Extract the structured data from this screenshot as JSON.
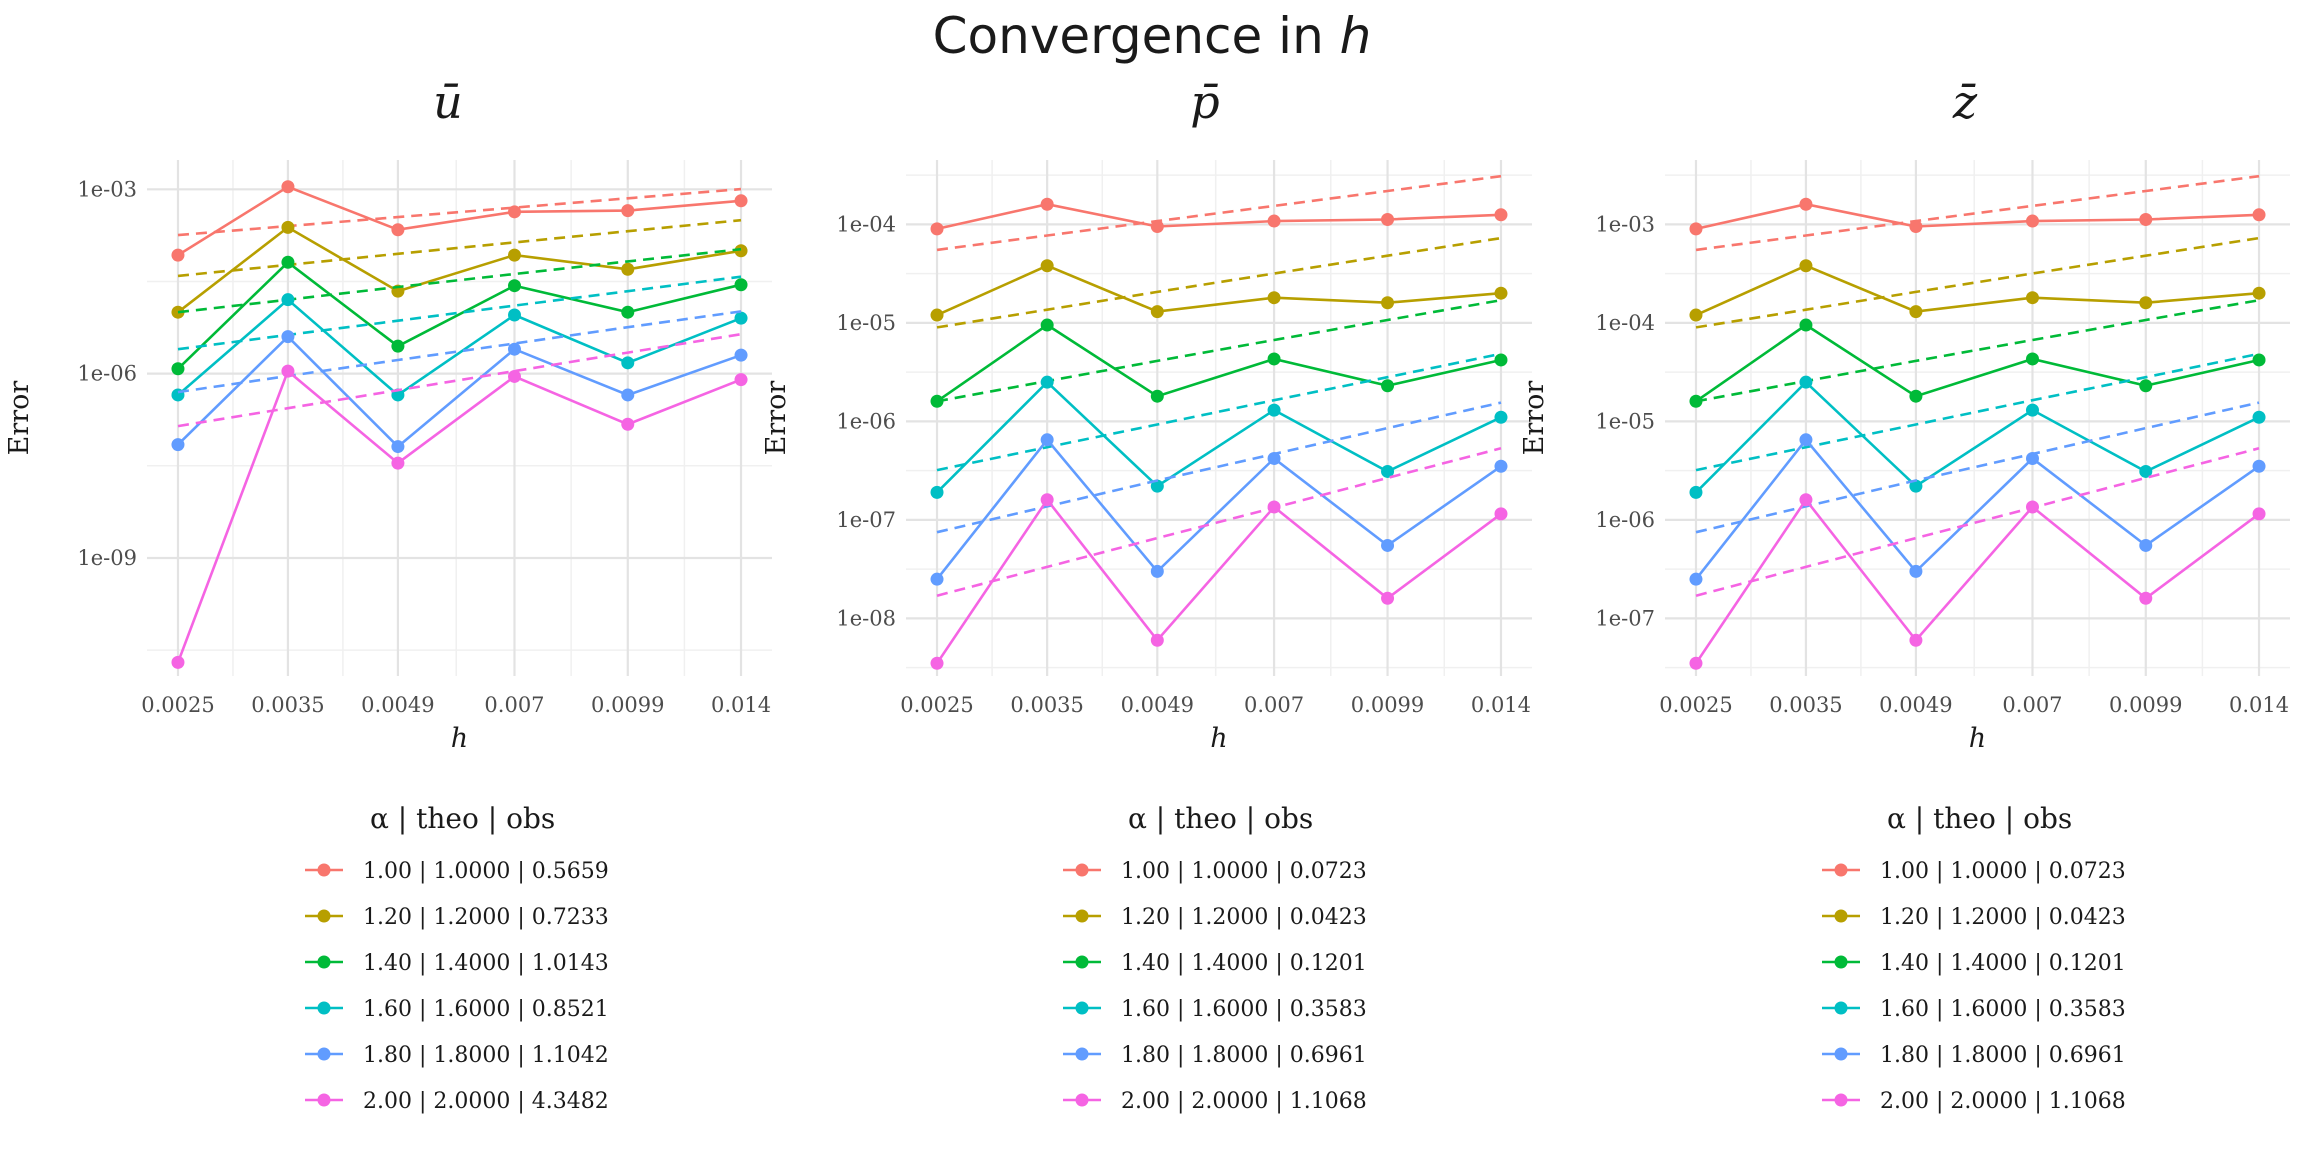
{
  "title_prefix": "Convergence in",
  "title_var": "h",
  "series_colors": [
    "#F8766D",
    "#B79F00",
    "#00BA38",
    "#00BFC4",
    "#619CFF",
    "#F564E3"
  ],
  "chart_data": [
    {
      "type": "line",
      "title": "ū",
      "xlabel": "h",
      "ylabel": "Error",
      "x_scale": "log",
      "y_scale": "log",
      "x": [
        0.0025,
        0.0035,
        0.0049,
        0.007,
        0.0099,
        0.014
      ],
      "x_tick_labels": [
        "0.0025",
        "0.0035",
        "0.0049",
        "0.007",
        "0.0099",
        "0.014"
      ],
      "y_ticks": [
        1e-09,
        1e-06,
        0.001
      ],
      "y_tick_labels": [
        "1e-09",
        "1e-06",
        "1e-03"
      ],
      "ylim": [
        1.2e-11,
        0.003
      ],
      "grid": true,
      "legend_header": "α  | theo  | obs",
      "legend_position": "bottom",
      "series": [
        {
          "name": "1.00 | 1.0000 | 0.5659",
          "values": [
            8.5e-05,
            0.0011,
            0.00022,
            0.00043,
            0.00045,
            0.00065
          ],
          "theoretical": [
            0.00018,
            0.000252,
            0.000353,
            0.000504,
            0.000713,
            0.00101
          ]
        },
        {
          "name": "1.20 | 1.2000 | 0.7233",
          "values": [
            1e-05,
            0.00024,
            2.2e-05,
            8.5e-05,
            5e-05,
            0.0001
          ],
          "theoretical": [
            3.9e-05,
            5.89e-05,
            8.93e-05,
            0.000137,
            0.000208,
            0.000314
          ]
        },
        {
          "name": "1.40 | 1.4000 | 1.0143",
          "values": [
            1.2e-06,
            6.5e-05,
            2.8e-06,
            2.7e-05,
            1e-05,
            2.8e-05
          ],
          "theoretical": [
            1e-05,
            1.6e-05,
            2.57e-05,
            4.19e-05,
            6.71e-05,
            0.000106
          ]
        },
        {
          "name": "1.60 | 1.6000 | 0.8521",
          "values": [
            4.5e-07,
            1.6e-05,
            4.5e-07,
            9e-06,
            1.5e-06,
            8e-06
          ],
          "theoretical": [
            2.5e-06,
            4.27e-06,
            7.26e-06,
            1.28e-05,
            2.2e-05,
            3.78e-05
          ]
        },
        {
          "name": "1.80 | 1.8000 | 1.1042",
          "values": [
            7e-08,
            4e-06,
            6.5e-08,
            2.5e-06,
            4.5e-07,
            2e-06
          ],
          "theoretical": [
            5e-07,
            9.15e-07,
            1.67e-06,
            3.1e-06,
            5.7e-06,
            1.03e-05
          ]
        },
        {
          "name": "2.00 | 2.0000 | 4.3482",
          "values": [
            2e-11,
            1.1e-06,
            3.5e-08,
            9e-07,
            1.5e-07,
            8e-07
          ],
          "theoretical": [
            1.4e-07,
            2.74e-07,
            5.38e-07,
            1.1e-06,
            2.2e-06,
            4.39e-06
          ]
        }
      ]
    },
    {
      "type": "line",
      "title": "p̄",
      "xlabel": "h",
      "ylabel": "Error",
      "x_scale": "log",
      "y_scale": "log",
      "x": [
        0.0025,
        0.0035,
        0.0049,
        0.007,
        0.0099,
        0.014
      ],
      "x_tick_labels": [
        "0.0025",
        "0.0035",
        "0.0049",
        "0.007",
        "0.0099",
        "0.014"
      ],
      "y_ticks": [
        1e-08,
        1e-07,
        1e-06,
        1e-05,
        0.0001
      ],
      "y_tick_labels": [
        "1e-08",
        "1e-07",
        "1e-06",
        "1e-05",
        "1e-04"
      ],
      "ylim": [
        2.6e-09,
        0.00045
      ],
      "grid": true,
      "legend_header": "α  | theo  | obs",
      "legend_position": "bottom",
      "series": [
        {
          "name": "1.00 | 1.0000 | 0.0723",
          "values": [
            9e-05,
            0.00016,
            9.5e-05,
            0.000108,
            0.000112,
            0.000125
          ],
          "theoretical": [
            5.5e-05,
            7.7e-05,
            0.000108,
            0.000154,
            0.000218,
            0.000308
          ]
        },
        {
          "name": "1.20 | 1.2000 | 0.0423",
          "values": [
            1.2e-05,
            3.8e-05,
            1.3e-05,
            1.8e-05,
            1.6e-05,
            2e-05
          ],
          "theoretical": [
            9e-06,
            1.36e-05,
            2.06e-05,
            3.17e-05,
            4.8e-05,
            7.25e-05
          ]
        },
        {
          "name": "1.40 | 1.4000 | 0.1201",
          "values": [
            1.6e-06,
            9.5e-06,
            1.8e-06,
            4.3e-06,
            2.3e-06,
            4.2e-06
          ],
          "theoretical": [
            1.6e-06,
            2.56e-06,
            4.11e-06,
            6.7e-06,
            1.07e-05,
            1.7e-05
          ]
        },
        {
          "name": "1.60 | 1.6000 | 0.3583",
          "values": [
            1.9e-07,
            2.5e-06,
            2.2e-07,
            1.3e-06,
            3.1e-07,
            1.1e-06
          ],
          "theoretical": [
            3.2e-07,
            5.47e-07,
            9.3e-07,
            1.64e-06,
            2.81e-06,
            4.85e-06
          ]
        },
        {
          "name": "1.80 | 1.8000 | 0.6961",
          "values": [
            2.5e-08,
            6.5e-07,
            3e-08,
            4.2e-07,
            5.5e-08,
            3.5e-07
          ],
          "theoretical": [
            7.5e-08,
            1.37e-07,
            2.51e-07,
            4.66e-07,
            8.54e-07,
            1.55e-06
          ]
        },
        {
          "name": "2.00 | 2.0000 | 1.1068",
          "values": [
            3.5e-09,
            1.6e-07,
            6e-09,
            1.35e-07,
            1.6e-08,
            1.15e-07
          ],
          "theoretical": [
            1.7e-08,
            3.33e-08,
            6.53e-08,
            1.33e-07,
            2.67e-07,
            5.33e-07
          ]
        }
      ]
    },
    {
      "type": "line",
      "title": "z̄",
      "xlabel": "h",
      "ylabel": "Error",
      "x_scale": "log",
      "y_scale": "log",
      "x": [
        0.0025,
        0.0035,
        0.0049,
        0.007,
        0.0099,
        0.014
      ],
      "x_tick_labels": [
        "0.0025",
        "0.0035",
        "0.0049",
        "0.007",
        "0.0099",
        "0.014"
      ],
      "y_ticks": [
        1e-07,
        1e-06,
        1e-05,
        0.0001,
        0.001
      ],
      "y_tick_labels": [
        "1e-07",
        "1e-06",
        "1e-05",
        "1e-04",
        "1e-03"
      ],
      "ylim": [
        2.6e-08,
        0.0045
      ],
      "grid": true,
      "legend_header": "α  | theo  | obs",
      "legend_position": "bottom",
      "series": [
        {
          "name": "1.00 | 1.0000 | 0.0723",
          "values": [
            0.0009,
            0.0016,
            0.00095,
            0.00108,
            0.00112,
            0.00125
          ],
          "theoretical": [
            0.00055,
            0.00077,
            0.00108,
            0.00154,
            0.00218,
            0.00308
          ]
        },
        {
          "name": "1.20 | 1.2000 | 0.0423",
          "values": [
            0.00012,
            0.00038,
            0.00013,
            0.00018,
            0.00016,
            0.0002
          ],
          "theoretical": [
            9e-05,
            0.000136,
            0.000206,
            0.000317,
            0.00048,
            0.000725
          ]
        },
        {
          "name": "1.40 | 1.4000 | 0.1201",
          "values": [
            1.6e-05,
            9.5e-05,
            1.8e-05,
            4.3e-05,
            2.3e-05,
            4.2e-05
          ],
          "theoretical": [
            1.6e-05,
            2.56e-05,
            4.11e-05,
            6.7e-05,
            0.000107,
            0.00017
          ]
        },
        {
          "name": "1.60 | 1.6000 | 0.3583",
          "values": [
            1.9e-06,
            2.5e-05,
            2.2e-06,
            1.3e-05,
            3.1e-06,
            1.1e-05
          ],
          "theoretical": [
            3.2e-06,
            5.47e-06,
            9.3e-06,
            1.64e-05,
            2.81e-05,
            4.85e-05
          ]
        },
        {
          "name": "1.80 | 1.8000 | 0.6961",
          "values": [
            2.5e-07,
            6.5e-06,
            3e-07,
            4.2e-06,
            5.5e-07,
            3.5e-06
          ],
          "theoretical": [
            7.5e-07,
            1.37e-06,
            2.51e-06,
            4.66e-06,
            8.54e-06,
            1.55e-05
          ]
        },
        {
          "name": "2.00 | 2.0000 | 1.1068",
          "values": [
            3.5e-08,
            1.6e-06,
            6e-08,
            1.35e-06,
            1.6e-07,
            1.15e-06
          ],
          "theoretical": [
            1.7e-07,
            3.33e-07,
            6.53e-07,
            1.33e-06,
            2.67e-06,
            5.33e-06
          ]
        }
      ]
    }
  ]
}
